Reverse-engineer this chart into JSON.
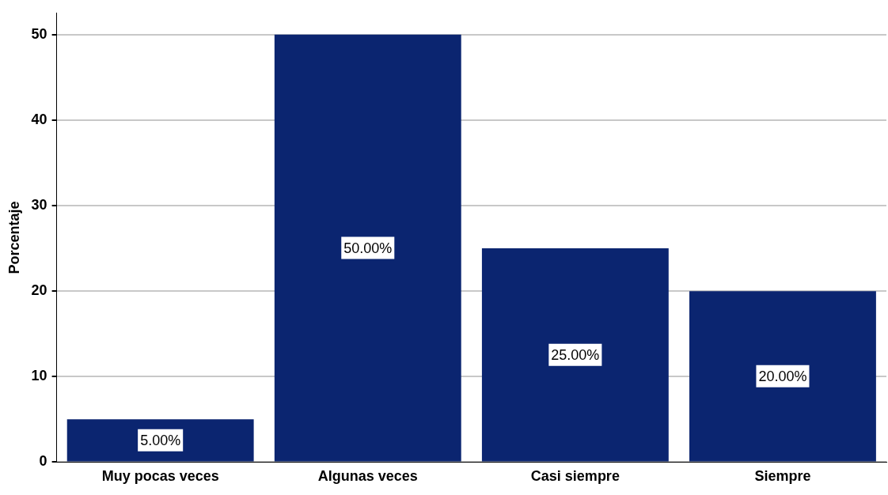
{
  "chart_data": {
    "type": "bar",
    "ylabel": "Porcentaje",
    "categories": [
      "Muy pocas veces",
      "Algunas veces",
      "Casi siempre",
      "Siempre"
    ],
    "values": [
      5,
      50,
      25,
      20
    ],
    "color": "#0b2570",
    "value_labels": [
      "5.00%",
      "50.00%",
      "25.00%",
      "20.00%"
    ],
    "ylim": [
      0,
      52.5
    ],
    "yticks": [
      0,
      10,
      20,
      30,
      40,
      50
    ],
    "grid": "y",
    "legend": false
  }
}
